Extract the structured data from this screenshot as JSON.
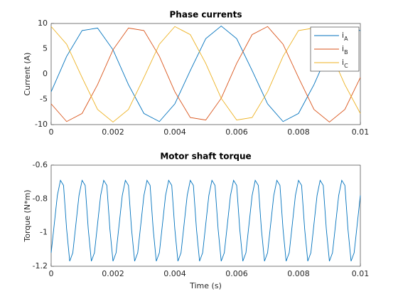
{
  "chart_data": [
    {
      "type": "line",
      "title": "Phase currents",
      "ylabel": "Current (A)",
      "x": [
        0,
        0.0005,
        0.001,
        0.0015,
        0.002,
        0.0025,
        0.003,
        0.0035,
        0.004,
        0.0045,
        0.005,
        0.0055,
        0.006,
        0.0065,
        0.007,
        0.0075,
        0.008,
        0.0085,
        0.009,
        0.0095,
        0.01
      ],
      "series": [
        {
          "name": "iA",
          "color": "#0072BD",
          "values": [
            -3.5,
            3.5,
            8.6,
            9.1,
            4.8,
            -2.1,
            -7.8,
            -9.4,
            -5.9,
            0.7,
            7.0,
            9.5,
            7.0,
            0.7,
            -5.9,
            -9.4,
            -7.8,
            -2.1,
            4.8,
            9.1,
            8.6
          ]
        },
        {
          "name": "iB",
          "color": "#D95319",
          "values": [
            -5.9,
            -9.4,
            -7.8,
            -2.1,
            4.8,
            9.1,
            8.6,
            3.5,
            -3.5,
            -8.6,
            -9.1,
            -4.8,
            2.1,
            7.8,
            9.4,
            5.9,
            -0.7,
            -7.0,
            -9.5,
            -7.0,
            -0.7
          ]
        },
        {
          "name": "iC",
          "color": "#EDB120",
          "values": [
            9.4,
            5.9,
            -0.7,
            -7.0,
            -9.5,
            -7.0,
            -0.7,
            5.9,
            9.4,
            7.8,
            2.1,
            -4.8,
            -9.1,
            -8.6,
            -3.5,
            3.5,
            8.6,
            9.1,
            4.8,
            -2.1,
            -7.8
          ]
        }
      ],
      "xlim": [
        0,
        0.01
      ],
      "xticks": [
        0,
        0.002,
        0.004,
        0.006,
        0.008,
        0.01
      ],
      "ylim": [
        -10,
        10
      ],
      "yticks": [
        -10,
        -5,
        0,
        5,
        10
      ],
      "grid": true,
      "legend": "northeast"
    },
    {
      "type": "line",
      "title": "Motor shaft torque",
      "xlabel": "Time (s)",
      "ylabel": "Torque (N*m)",
      "x": [
        0,
        0.0001,
        0.0002,
        0.0003,
        0.0004,
        0.0005,
        0.0006,
        0.0007,
        0.0008,
        0.0009,
        0.001,
        0.0011,
        0.0012,
        0.0013,
        0.0014,
        0.0015,
        0.0016,
        0.0017,
        0.0018,
        0.0019,
        0.002,
        0.0021,
        0.0022,
        0.0023,
        0.0024,
        0.0025,
        0.0026,
        0.0027,
        0.0028,
        0.0029,
        0.003,
        0.0031,
        0.0032,
        0.0033,
        0.0034,
        0.0035,
        0.0036,
        0.0037,
        0.0038,
        0.0039,
        0.004,
        0.0041,
        0.0042,
        0.0043,
        0.0044,
        0.0045,
        0.0046,
        0.0047,
        0.0048,
        0.0049,
        0.005,
        0.0051,
        0.0052,
        0.0053,
        0.0054,
        0.0055,
        0.0056,
        0.0057,
        0.0058,
        0.0059,
        0.006,
        0.0061,
        0.0062,
        0.0063,
        0.0064,
        0.0065,
        0.0066,
        0.0067,
        0.0068,
        0.0069,
        0.007,
        0.0071,
        0.0072,
        0.0073,
        0.0074,
        0.0075,
        0.0076,
        0.0077,
        0.0078,
        0.0079,
        0.008,
        0.0081,
        0.0082,
        0.0083,
        0.0084,
        0.0085,
        0.0086,
        0.0087,
        0.0088,
        0.0089,
        0.009,
        0.0091,
        0.0092,
        0.0093,
        0.0094,
        0.0095,
        0.0096,
        0.0097,
        0.0098,
        0.0099,
        0.01
      ],
      "series": [
        {
          "color": "#0072BD",
          "values": [
            -1.12,
            -0.95,
            -0.78,
            -0.69,
            -0.72,
            -0.98,
            -1.17,
            -1.12,
            -0.95,
            -0.78,
            -0.69,
            -0.72,
            -0.98,
            -1.17,
            -1.12,
            -0.95,
            -0.78,
            -0.69,
            -0.72,
            -0.98,
            -1.17,
            -1.12,
            -0.95,
            -0.78,
            -0.69,
            -0.72,
            -0.98,
            -1.17,
            -1.12,
            -0.95,
            -0.78,
            -0.69,
            -0.72,
            -0.98,
            -1.17,
            -1.12,
            -0.95,
            -0.78,
            -0.69,
            -0.72,
            -0.98,
            -1.17,
            -1.12,
            -0.95,
            -0.78,
            -0.69,
            -0.72,
            -0.98,
            -1.17,
            -1.12,
            -0.95,
            -0.78,
            -0.69,
            -0.72,
            -0.98,
            -1.17,
            -1.12,
            -0.95,
            -0.78,
            -0.69,
            -0.72,
            -0.98,
            -1.17,
            -1.12,
            -0.95,
            -0.78,
            -0.69,
            -0.72,
            -0.98,
            -1.17,
            -1.12,
            -0.95,
            -0.78,
            -0.69,
            -0.72,
            -0.98,
            -1.17,
            -1.12,
            -0.95,
            -0.78,
            -0.69,
            -0.72,
            -0.98,
            -1.17,
            -1.12,
            -0.95,
            -0.78,
            -0.69,
            -0.72,
            -0.98,
            -1.17,
            -1.12,
            -0.95,
            -0.78,
            -0.69,
            -0.72,
            -0.98,
            -1.17,
            -1.12,
            -0.95,
            -0.78
          ]
        }
      ],
      "xlim": [
        0,
        0.01
      ],
      "xticks": [
        0,
        0.002,
        0.004,
        0.006,
        0.008,
        0.01
      ],
      "ylim": [
        -1.2,
        -0.6
      ],
      "yticks": [
        -1.2,
        -1,
        -0.8,
        -0.6
      ],
      "grid": true
    }
  ]
}
